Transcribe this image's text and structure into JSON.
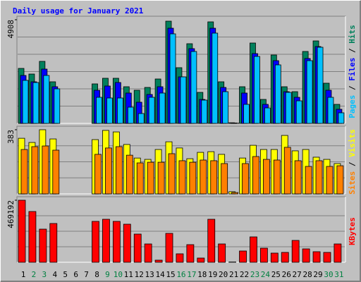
{
  "chart_data": {
    "type": "bar",
    "title": "Daily usage for January 2021",
    "separator": " / ",
    "categories": [
      "1",
      "2",
      "3",
      "4",
      "5",
      "6",
      "7",
      "8",
      "9",
      "10",
      "11",
      "12",
      "13",
      "14",
      "15",
      "16",
      "17",
      "18",
      "19",
      "20",
      "21",
      "22",
      "23",
      "24",
      "25",
      "26",
      "27",
      "28",
      "29",
      "30",
      "31"
    ],
    "category_colors": [
      "#000000",
      "#008040",
      "#008040",
      "#000000",
      "#000000",
      "#000000",
      "#000000",
      "#000000",
      "#008040",
      "#008040",
      "#000000",
      "#000000",
      "#000000",
      "#000000",
      "#000000",
      "#008040",
      "#008040",
      "#000000",
      "#000000",
      "#000000",
      "#000000",
      "#000000",
      "#008040",
      "#008040",
      "#000000",
      "#000000",
      "#000000",
      "#000000",
      "#000000",
      "#008040",
      "#008040"
    ],
    "panels": [
      {
        "ylim": [
          0,
          4908
        ],
        "yticks": [
          4908
        ],
        "series": [
          {
            "name": "Hits",
            "color": "#00805c",
            "values": [
              2604,
              2337,
              2938,
              1970,
              0,
              0,
              0,
              1870,
              2137,
              2137,
              1736,
              1569,
              1703,
              2103,
              4841,
              2638,
              3773,
              1469,
              4808,
              1970,
              30,
              1736,
              3806,
              1135,
              3239,
              1736,
              1502,
              3406,
              3906,
              1903,
              901
            ]
          },
          {
            "name": "Files",
            "color": "#0000ff",
            "values": [
              2270,
              1970,
              2571,
              1736,
              0,
              0,
              0,
              1569,
              1770,
              1936,
              1436,
              1002,
              1369,
              1736,
              4507,
              2203,
              3539,
              1135,
              4507,
              1703,
              20,
              1436,
              3305,
              901,
              2971,
              1502,
              1235,
              3072,
              3639,
              1569,
              668
            ]
          },
          {
            "name": "Pages",
            "color": "#00c0ff",
            "values": [
              2037,
              1936,
              2270,
              1636,
              0,
              0,
              0,
              1235,
              1202,
              1202,
              768,
              467,
              1235,
              1436,
              4240,
              2203,
              3406,
              1102,
              4274,
              1502,
              10,
              901,
              3172,
              734,
              2771,
              1469,
              1068,
              2971,
              3606,
              1235,
              501
            ]
          }
        ]
      },
      {
        "ylim": [
          0,
          383
        ],
        "yticks": [
          383
        ],
        "series": [
          {
            "name": "Visits",
            "color": "#ffff00",
            "values": [
              332,
              307,
              383,
              328,
              0,
              0,
              0,
              324,
              379,
              370,
              295,
              214,
              206,
              265,
              311,
              274,
              210,
              248,
              252,
              236,
              13,
              214,
              290,
              265,
              265,
              349,
              257,
              265,
              219,
              206,
              181
            ]
          },
          {
            "name": "Sites",
            "color": "#ff8000",
            "values": [
              265,
              282,
              286,
              261,
              0,
              0,
              0,
              236,
              274,
              282,
              231,
              185,
              189,
              189,
              240,
              198,
              189,
              202,
              198,
              181,
              8,
              181,
              223,
              206,
              202,
              278,
              198,
              164,
              198,
              164,
              168
            ]
          }
        ]
      },
      {
        "ylim": [
          0,
          469192
        ],
        "yticks": [
          469192
        ],
        "series": [
          {
            "name": "KBytes",
            "color": "#ff0000",
            "values": [
              469192,
              383884,
              250587,
              293245,
              0,
              0,
              0,
              309240,
              325235,
              309240,
              287913,
              213269,
              138625,
              16000,
              218600,
              63980,
              133293,
              31990,
              325235,
              138625,
              2000,
              85307,
              191942,
              106635,
              69313,
              74644,
              165284,
              101303,
              79976,
              74644,
              138625
            ]
          }
        ]
      }
    ]
  }
}
